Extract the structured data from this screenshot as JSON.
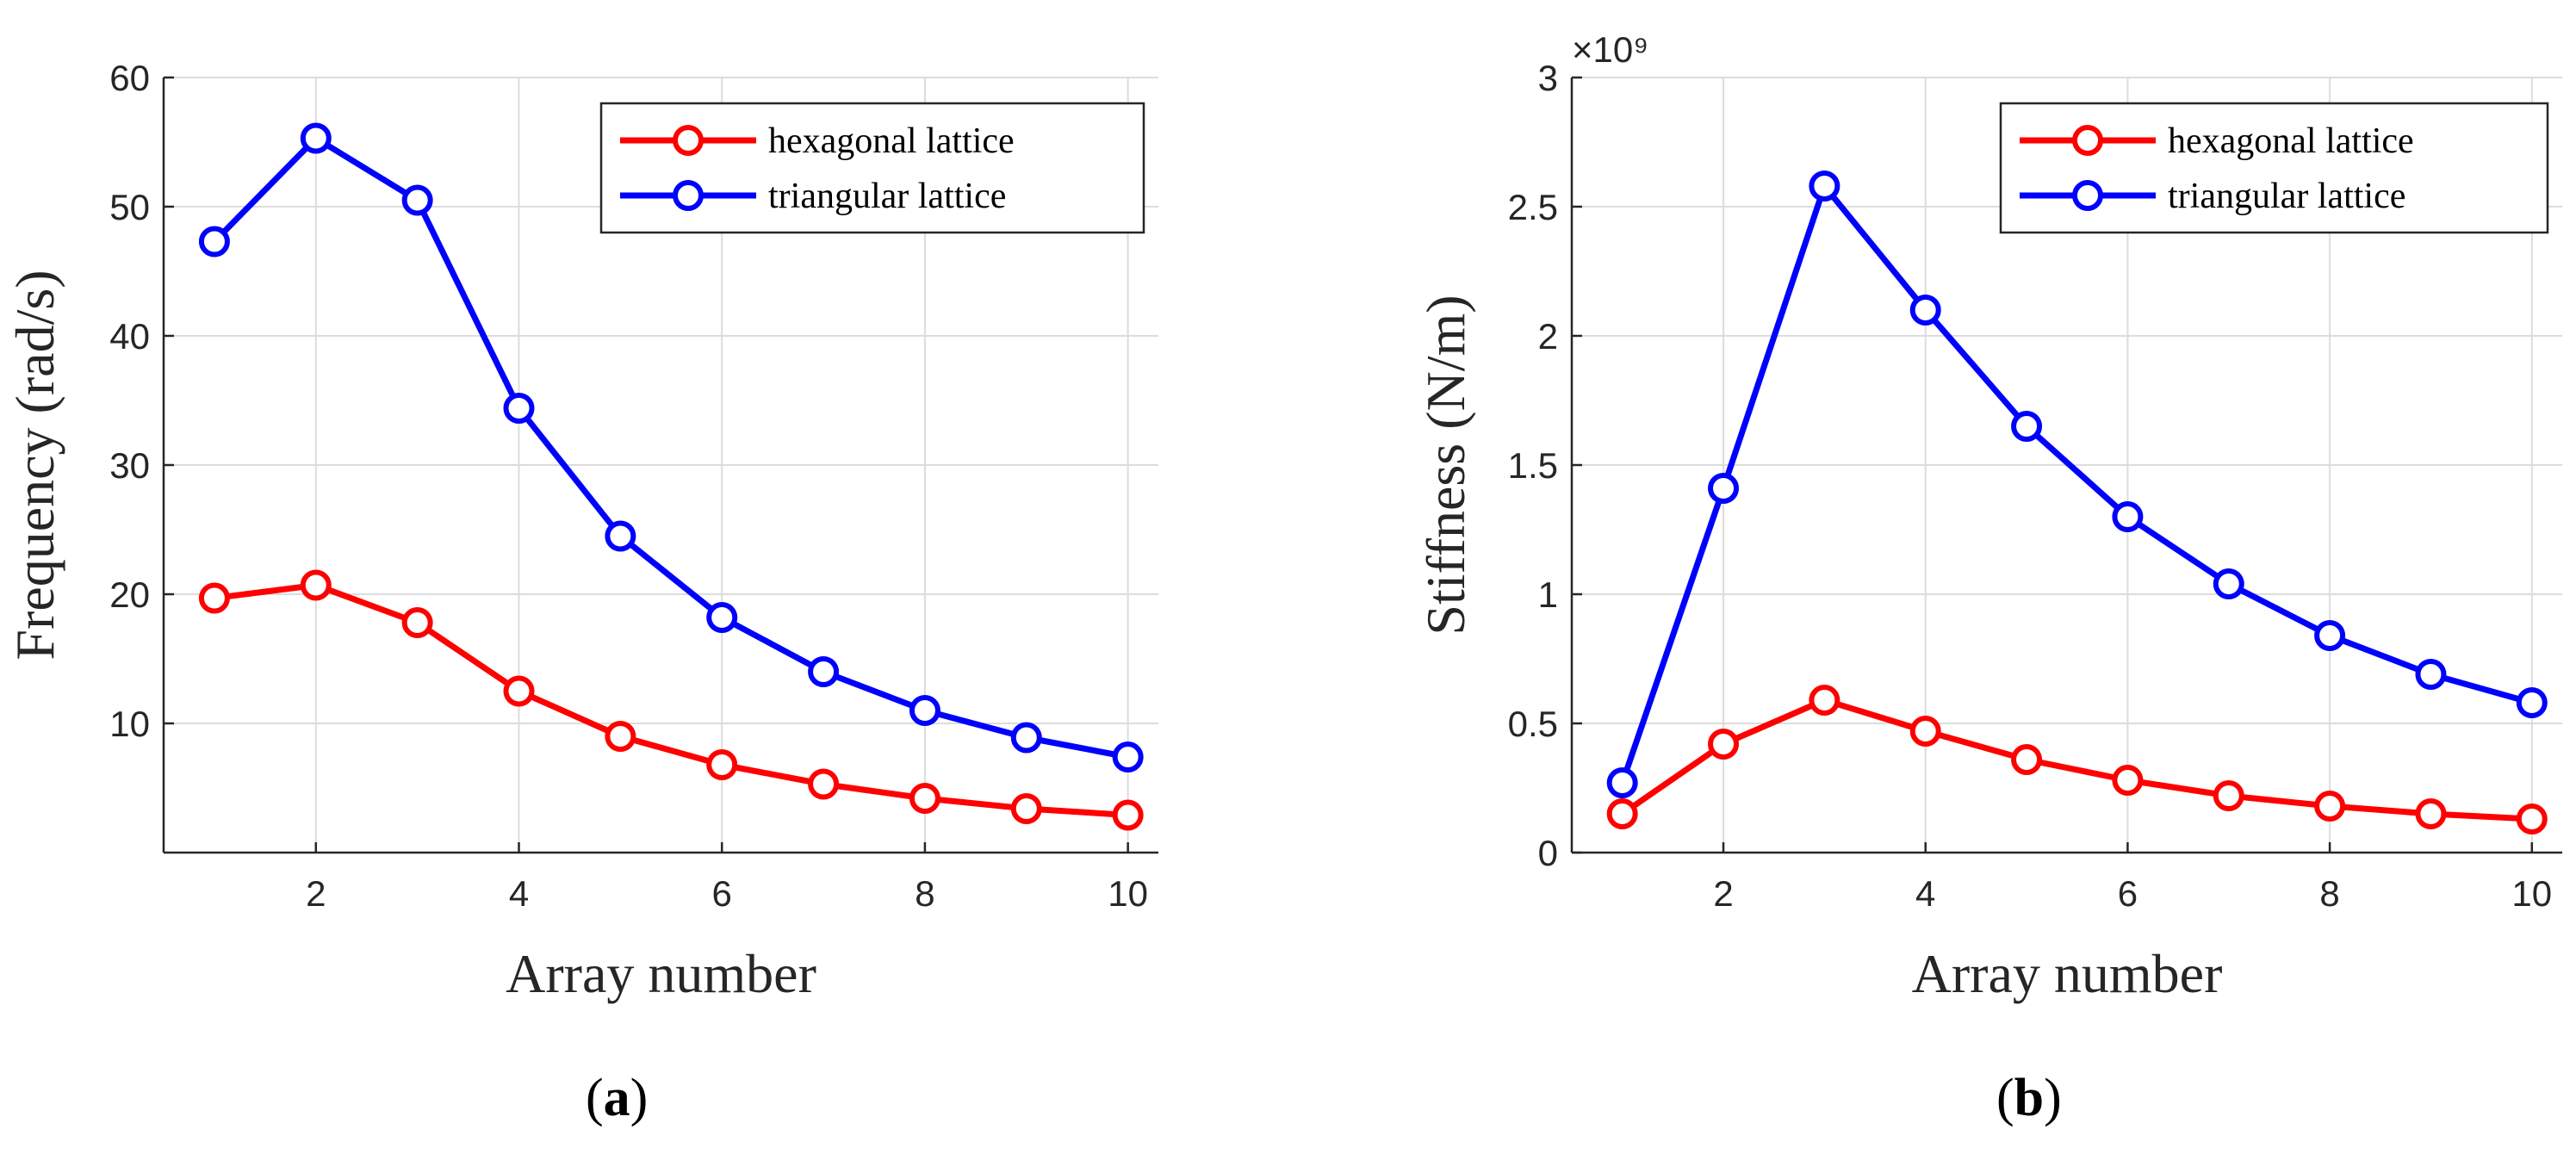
{
  "chart_data": [
    {
      "type": "line",
      "panel_label": "a",
      "x": [
        1,
        2,
        3,
        4,
        5,
        6,
        7,
        8,
        9,
        10
      ],
      "xlabel": "Array number",
      "ylabel": "Frequency (rad/s)",
      "xlim": [
        0.5,
        10.3
      ],
      "ylim": [
        0,
        60
      ],
      "xticks": [
        2,
        4,
        6,
        8,
        10
      ],
      "yticks": [
        10,
        20,
        30,
        40,
        50,
        60
      ],
      "ytick_labels": [
        "10",
        "20",
        "30",
        "40",
        "50",
        "60"
      ],
      "exponent_label": "",
      "grid": true,
      "legend_position": "top-right",
      "series": [
        {
          "name": "hexagonal lattice",
          "color": "#ff0000",
          "values": [
            19.7,
            20.7,
            17.8,
            12.5,
            9.0,
            6.8,
            5.3,
            4.2,
            3.4,
            2.9
          ]
        },
        {
          "name": "triangular lattice",
          "color": "#0000ff",
          "values": [
            47.3,
            55.3,
            50.5,
            34.4,
            24.5,
            18.2,
            14.0,
            11.0,
            8.9,
            7.4
          ]
        }
      ]
    },
    {
      "type": "line",
      "panel_label": "b",
      "x": [
        1,
        2,
        3,
        4,
        5,
        6,
        7,
        8,
        9,
        10
      ],
      "xlabel": "Array number",
      "ylabel": "Stiffness (N/m)",
      "xlim": [
        0.5,
        10.3
      ],
      "ylim": [
        0,
        3
      ],
      "xticks": [
        2,
        4,
        6,
        8,
        10
      ],
      "yticks": [
        0,
        0.5,
        1,
        1.5,
        2,
        2.5,
        3
      ],
      "ytick_labels": [
        "0",
        "0.5",
        "1",
        "1.5",
        "2",
        "2.5",
        "3"
      ],
      "exponent_label": "×10⁹",
      "grid": true,
      "legend_position": "top-right",
      "series": [
        {
          "name": "hexagonal lattice",
          "color": "#ff0000",
          "values": [
            0.15,
            0.42,
            0.59,
            0.47,
            0.36,
            0.28,
            0.22,
            0.18,
            0.15,
            0.13
          ]
        },
        {
          "name": "triangular lattice",
          "color": "#0000ff",
          "values": [
            0.27,
            1.41,
            2.58,
            2.1,
            1.65,
            1.3,
            1.04,
            0.84,
            0.69,
            0.58
          ]
        }
      ]
    }
  ]
}
